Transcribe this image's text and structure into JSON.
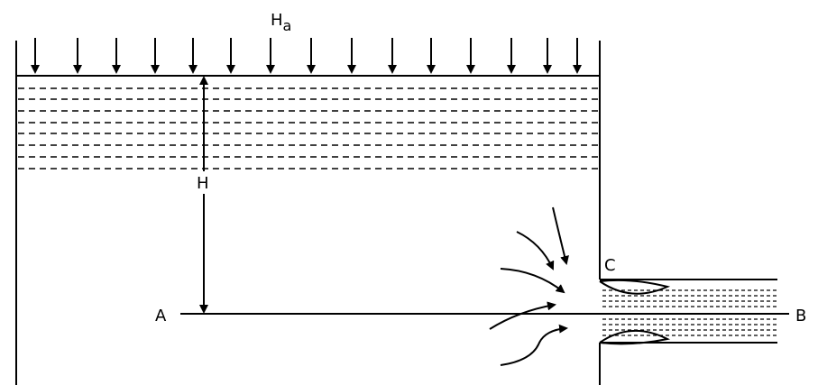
{
  "labels": {
    "atmospheric_pressure": {
      "main": "H",
      "subscript": "a"
    },
    "head": "H",
    "point_a": "A",
    "point_b": "B",
    "vena_contracta": "C"
  }
}
